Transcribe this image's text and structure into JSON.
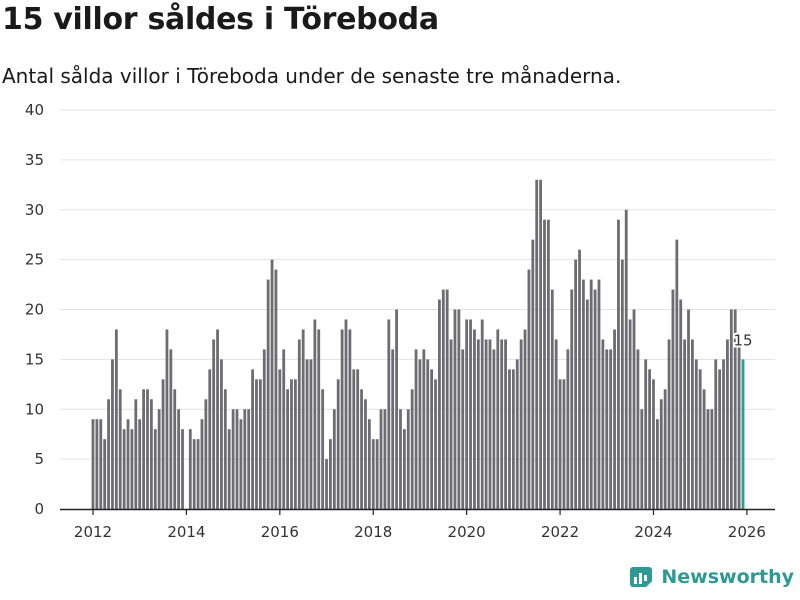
{
  "title": "15 villor såldes i Töreboda",
  "subtitle": "Antal sålda villor i Töreboda under de senaste tre månaderna.",
  "brand": "Newsworthy",
  "colors": {
    "bar": "#6d6c72",
    "highlight": "#2f9a94",
    "grid": "#e3e3e3",
    "axis": "#222222"
  },
  "chart_data": {
    "type": "bar",
    "title": "15 villor såldes i Töreboda",
    "subtitle": "Antal sålda villor i Töreboda under de senaste tre månaderna.",
    "xlabel": "",
    "ylabel": "",
    "ylim": [
      0,
      40
    ],
    "yticks": [
      0,
      5,
      10,
      15,
      20,
      25,
      30,
      35,
      40
    ],
    "xticks": [
      "2012",
      "2014",
      "2016",
      "2018",
      "2020",
      "2022",
      "2024",
      "2026"
    ],
    "x_start": "2012-01",
    "x_end": "2026-01",
    "grid": true,
    "highlight_label": "15",
    "values": [
      9,
      9,
      9,
      7,
      11,
      15,
      18,
      12,
      8,
      9,
      8,
      11,
      9,
      12,
      12,
      11,
      8,
      10,
      13,
      18,
      16,
      12,
      10,
      8,
      0,
      8,
      7,
      7,
      9,
      11,
      14,
      17,
      18,
      15,
      12,
      8,
      10,
      10,
      9,
      10,
      10,
      14,
      13,
      13,
      16,
      23,
      25,
      24,
      14,
      16,
      12,
      13,
      13,
      17,
      18,
      15,
      15,
      19,
      18,
      12,
      5,
      7,
      10,
      13,
      18,
      19,
      18,
      14,
      14,
      12,
      11,
      9,
      7,
      7,
      10,
      10,
      19,
      16,
      20,
      10,
      8,
      10,
      12,
      16,
      15,
      16,
      15,
      14,
      13,
      21,
      22,
      22,
      17,
      20,
      20,
      16,
      19,
      19,
      18,
      17,
      19,
      17,
      17,
      16,
      18,
      17,
      17,
      14,
      14,
      15,
      17,
      18,
      24,
      27,
      33,
      33,
      29,
      29,
      22,
      17,
      13,
      13,
      16,
      22,
      25,
      26,
      23,
      21,
      23,
      22,
      23,
      17,
      16,
      16,
      18,
      29,
      25,
      30,
      19,
      20,
      16,
      10,
      15,
      14,
      13,
      9,
      11,
      12,
      17,
      22,
      27,
      21,
      17,
      20,
      17,
      15,
      14,
      12,
      10,
      10,
      15,
      14,
      15,
      17,
      20,
      20,
      17,
      15
    ]
  }
}
